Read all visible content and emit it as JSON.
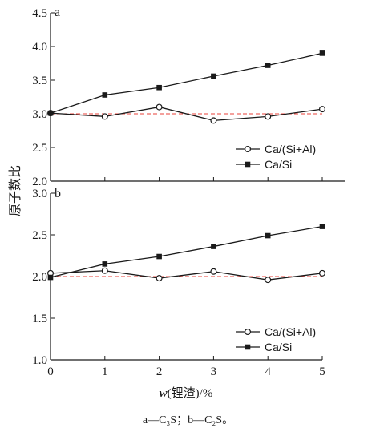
{
  "figure": {
    "ylabel": "原子数比",
    "xlabel_var": "w",
    "xlabel_rest": "(锂渣)/%",
    "caption": "a—C₃S；b—C₂S。"
  },
  "chart_data": [
    {
      "type": "line",
      "panel_label": "a",
      "x": [
        0,
        1,
        2,
        3,
        4,
        5
      ],
      "xlim": [
        0,
        5
      ],
      "ylim": [
        2.0,
        4.5
      ],
      "yticks": [
        "2.0",
        "2.5",
        "3.0",
        "3.5",
        "4.0",
        "4.5"
      ],
      "reference_line": 3.0,
      "reference_color": "#e8413a",
      "legend": "right-middle",
      "series": [
        {
          "name": "Ca/(Si+Al)",
          "marker": "open-circle",
          "values": [
            3.01,
            2.96,
            3.1,
            2.9,
            2.96,
            3.07
          ]
        },
        {
          "name": "Ca/Si",
          "marker": "filled-square",
          "values": [
            3.01,
            3.28,
            3.39,
            3.56,
            3.72,
            3.9
          ]
        }
      ]
    },
    {
      "type": "line",
      "panel_label": "b",
      "x": [
        0,
        1,
        2,
        3,
        4,
        5
      ],
      "xticks": [
        "0",
        "1",
        "2",
        "3",
        "4",
        "5"
      ],
      "xlim": [
        0,
        5
      ],
      "ylim": [
        1.0,
        3.0
      ],
      "yticks": [
        "1.0",
        "1.5",
        "2.0",
        "2.5",
        "3.0"
      ],
      "reference_line": 2.0,
      "reference_color": "#e8413a",
      "legend": "bottom-right",
      "series": [
        {
          "name": "Ca/(Si+Al)",
          "marker": "open-circle",
          "values": [
            2.04,
            2.07,
            1.98,
            2.06,
            1.96,
            2.04
          ]
        },
        {
          "name": "Ca/Si",
          "marker": "filled-square",
          "values": [
            1.99,
            2.15,
            2.24,
            2.36,
            2.49,
            2.6
          ]
        }
      ]
    }
  ]
}
